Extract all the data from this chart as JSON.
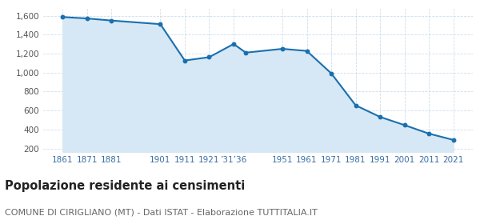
{
  "years": [
    1861,
    1871,
    1881,
    1901,
    1911,
    1921,
    1931,
    1936,
    1951,
    1961,
    1971,
    1981,
    1991,
    2001,
    2011,
    2021
  ],
  "population": [
    1585,
    1570,
    1548,
    1510,
    1127,
    1162,
    1301,
    1210,
    1250,
    1228,
    992,
    655,
    533,
    447,
    357,
    291
  ],
  "ytick_values": [
    200,
    400,
    600,
    800,
    1000,
    1200,
    1400,
    1600
  ],
  "ylim": [
    160,
    1670
  ],
  "xlim": [
    1853,
    2029
  ],
  "line_color": "#1a6faf",
  "fill_color": "#d6e8f5",
  "marker_color": "#1a6faf",
  "grid_color": "#c8daea",
  "bg_color": "#ffffff",
  "title": "Popolazione residente ai censimenti",
  "subtitle": "COMUNE DI CIRIGLIANO (MT) - Dati ISTAT - Elaborazione TUTTITALIA.IT",
  "title_fontsize": 10.5,
  "subtitle_fontsize": 8.0,
  "x_tick_positions": [
    1861,
    1871,
    1881,
    1901,
    1911,
    1921,
    1931,
    1951,
    1961,
    1971,
    1981,
    1991,
    2001,
    2011,
    2021
  ],
  "x_tick_labels": [
    "1861",
    "1871",
    "1881",
    "1901",
    "1911",
    "1921",
    "’31’36",
    "1951",
    "1961",
    "1971",
    "1981",
    "1991",
    "2001",
    "2011",
    "2021"
  ]
}
